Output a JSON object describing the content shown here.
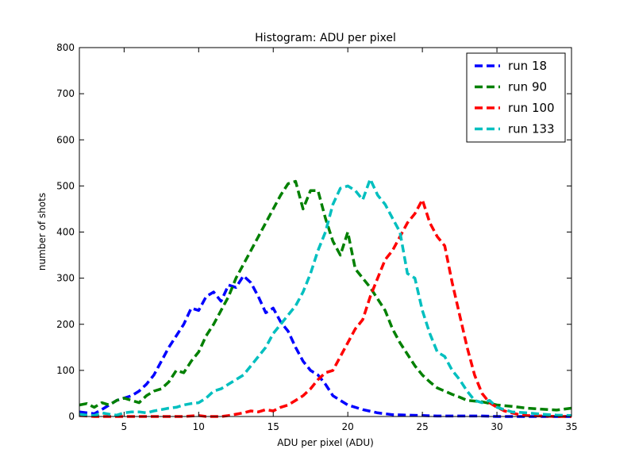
{
  "chart_data": {
    "type": "line",
    "title": "Histogram: ADU per pixel",
    "xlabel": "ADU per pixel (ADU)",
    "ylabel": "number of shots",
    "xlim": [
      2,
      35
    ],
    "ylim": [
      0,
      800
    ],
    "xticks": [
      5,
      10,
      15,
      20,
      25,
      30,
      35
    ],
    "yticks": [
      0,
      100,
      200,
      300,
      400,
      500,
      600,
      700,
      800
    ],
    "grid": false,
    "legend_position": "top-right",
    "line_style": "dashed",
    "series": [
      {
        "name": "run 18",
        "color": "#0000ff",
        "x": [
          2,
          2.5,
          3,
          3.5,
          4,
          4.5,
          5,
          5.5,
          6,
          6.5,
          7,
          7.5,
          8,
          8.5,
          9,
          9.5,
          10,
          10.5,
          11,
          11.5,
          12,
          12.5,
          13,
          13.5,
          14,
          14.5,
          15,
          15.5,
          16,
          16.5,
          17,
          17.5,
          18,
          18.5,
          19,
          19.5,
          20,
          21,
          22,
          23,
          24,
          25,
          26,
          27,
          28,
          29,
          30,
          31,
          32,
          33,
          34,
          35
        ],
        "y": [
          10,
          8,
          6,
          15,
          25,
          35,
          40,
          45,
          55,
          70,
          90,
          120,
          150,
          175,
          200,
          235,
          230,
          260,
          270,
          250,
          285,
          280,
          305,
          290,
          260,
          225,
          235,
          205,
          185,
          150,
          120,
          100,
          90,
          70,
          45,
          35,
          25,
          15,
          8,
          4,
          3,
          2,
          1,
          1,
          1,
          1,
          0,
          0,
          0,
          0,
          0,
          0
        ]
      },
      {
        "name": "run 90",
        "color": "#008000",
        "x": [
          2,
          2.5,
          3,
          3.5,
          4,
          4.5,
          5,
          5.5,
          6,
          6.5,
          7,
          7.5,
          8,
          8.5,
          9,
          9.5,
          10,
          10.5,
          11,
          11.5,
          12,
          12.5,
          13,
          13.5,
          14,
          14.5,
          15,
          15.5,
          16,
          16.5,
          17,
          17.5,
          18,
          18.5,
          19,
          19.5,
          20,
          20.5,
          21,
          21.5,
          22,
          22.5,
          23,
          23.5,
          24,
          24.5,
          25,
          25.5,
          26,
          26.5,
          27,
          27.5,
          28,
          29,
          30,
          31,
          32,
          33,
          34,
          35
        ],
        "y": [
          25,
          28,
          20,
          30,
          25,
          35,
          40,
          35,
          30,
          45,
          55,
          60,
          75,
          100,
          95,
          120,
          140,
          175,
          200,
          230,
          260,
          300,
          330,
          360,
          390,
          420,
          450,
          480,
          505,
          510,
          450,
          490,
          490,
          430,
          380,
          350,
          400,
          320,
          300,
          280,
          255,
          230,
          190,
          160,
          135,
          110,
          90,
          75,
          62,
          55,
          48,
          42,
          35,
          32,
          25,
          22,
          18,
          16,
          14,
          18
        ]
      },
      {
        "name": "run 100",
        "color": "#ff0000",
        "x": [
          2,
          3,
          4,
          5,
          6,
          7,
          8,
          9,
          10,
          10.5,
          11,
          11.5,
          12,
          12.5,
          13,
          13.5,
          14,
          14.5,
          15,
          15.5,
          16,
          16.5,
          17,
          17.5,
          18,
          18.5,
          19,
          19.5,
          20,
          20.5,
          21,
          21.5,
          22,
          22.5,
          23,
          23.5,
          24,
          24.5,
          25,
          25.5,
          26,
          26.5,
          27,
          27.5,
          28,
          28.5,
          29,
          29.5,
          30,
          30.5,
          31,
          31.5,
          32,
          33,
          34,
          35
        ],
        "y": [
          2,
          0,
          0,
          0,
          0,
          0,
          0,
          0,
          2,
          0,
          0,
          0,
          2,
          5,
          8,
          12,
          10,
          15,
          12,
          20,
          25,
          35,
          45,
          60,
          80,
          95,
          100,
          130,
          160,
          190,
          210,
          260,
          300,
          340,
          360,
          390,
          420,
          440,
          470,
          420,
          390,
          370,
          290,
          220,
          150,
          90,
          50,
          30,
          20,
          12,
          8,
          4,
          2,
          1,
          0,
          0
        ]
      },
      {
        "name": "run 133",
        "color": "#00bfbf",
        "x": [
          2,
          2.5,
          3,
          3.5,
          4,
          4.5,
          5,
          5.5,
          6,
          6.5,
          7,
          7.5,
          8,
          8.5,
          9,
          9.5,
          10,
          10.5,
          11,
          11.5,
          12,
          12.5,
          13,
          13.5,
          14,
          14.5,
          15,
          15.5,
          16,
          16.5,
          17,
          17.5,
          18,
          18.5,
          19,
          19.5,
          20,
          20.5,
          21,
          21.5,
          22,
          22.5,
          23,
          23.5,
          24,
          24.5,
          25,
          25.5,
          26,
          26.5,
          27,
          27.5,
          28,
          28.5,
          29,
          29.5,
          30,
          31,
          32,
          33,
          34,
          35
        ],
        "y": [
          5,
          3,
          2,
          8,
          5,
          3,
          8,
          10,
          10,
          8,
          12,
          15,
          18,
          20,
          25,
          28,
          30,
          40,
          55,
          60,
          70,
          80,
          90,
          110,
          130,
          150,
          180,
          200,
          220,
          240,
          270,
          310,
          360,
          400,
          460,
          495,
          500,
          490,
          470,
          515,
          480,
          460,
          430,
          400,
          310,
          300,
          230,
          180,
          140,
          130,
          100,
          80,
          55,
          35,
          30,
          35,
          20,
          10,
          8,
          5,
          3,
          2
        ]
      }
    ]
  }
}
